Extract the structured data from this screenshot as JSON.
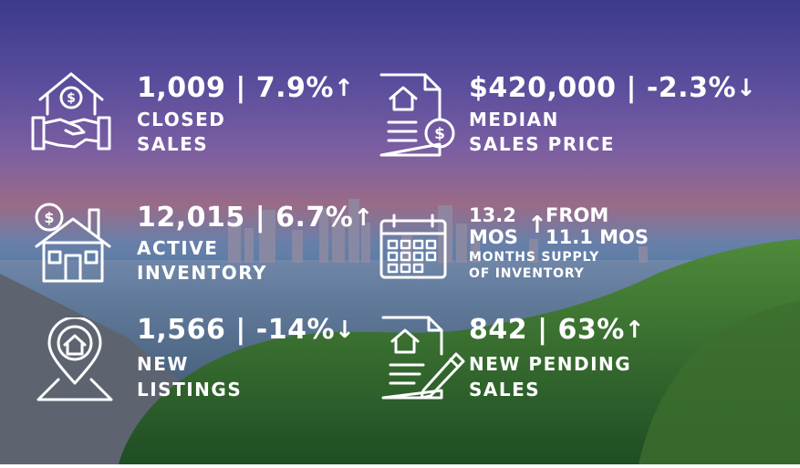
{
  "stats": {
    "closed": {
      "headline": "1,009 | 7.9%",
      "arrow": "↑",
      "label1": "CLOSED",
      "label2": "SALES",
      "icon": "home-handshake-icon"
    },
    "median": {
      "headline": "$420,000 | -2.3%",
      "arrow": "↓",
      "label1": "MEDIAN",
      "label2": "SALES PRICE",
      "icon": "home-document-dollar-icon"
    },
    "active": {
      "headline": "12,015 | 6.7%",
      "arrow": "↑",
      "label1": "ACTIVE",
      "label2": "INVENTORY",
      "icon": "house-dollar-icon"
    },
    "months": {
      "value": "13.2",
      "unit": "MOS",
      "arrow": "↑",
      "from1": "FROM",
      "from2": "11.1 MOS",
      "label1": "MONTHS SUPPLY",
      "label2": "OF INVENTORY",
      "icon": "calendar-icon"
    },
    "new": {
      "headline": "1,566 | -14%",
      "arrow": "↓",
      "label1": "NEW",
      "label2": "LISTINGS",
      "icon": "map-pin-home-icon"
    },
    "pending": {
      "headline": "842 | 63%",
      "arrow": "↑",
      "label1": "NEW PENDING",
      "label2": "SALES",
      "icon": "contract-pen-icon"
    }
  }
}
